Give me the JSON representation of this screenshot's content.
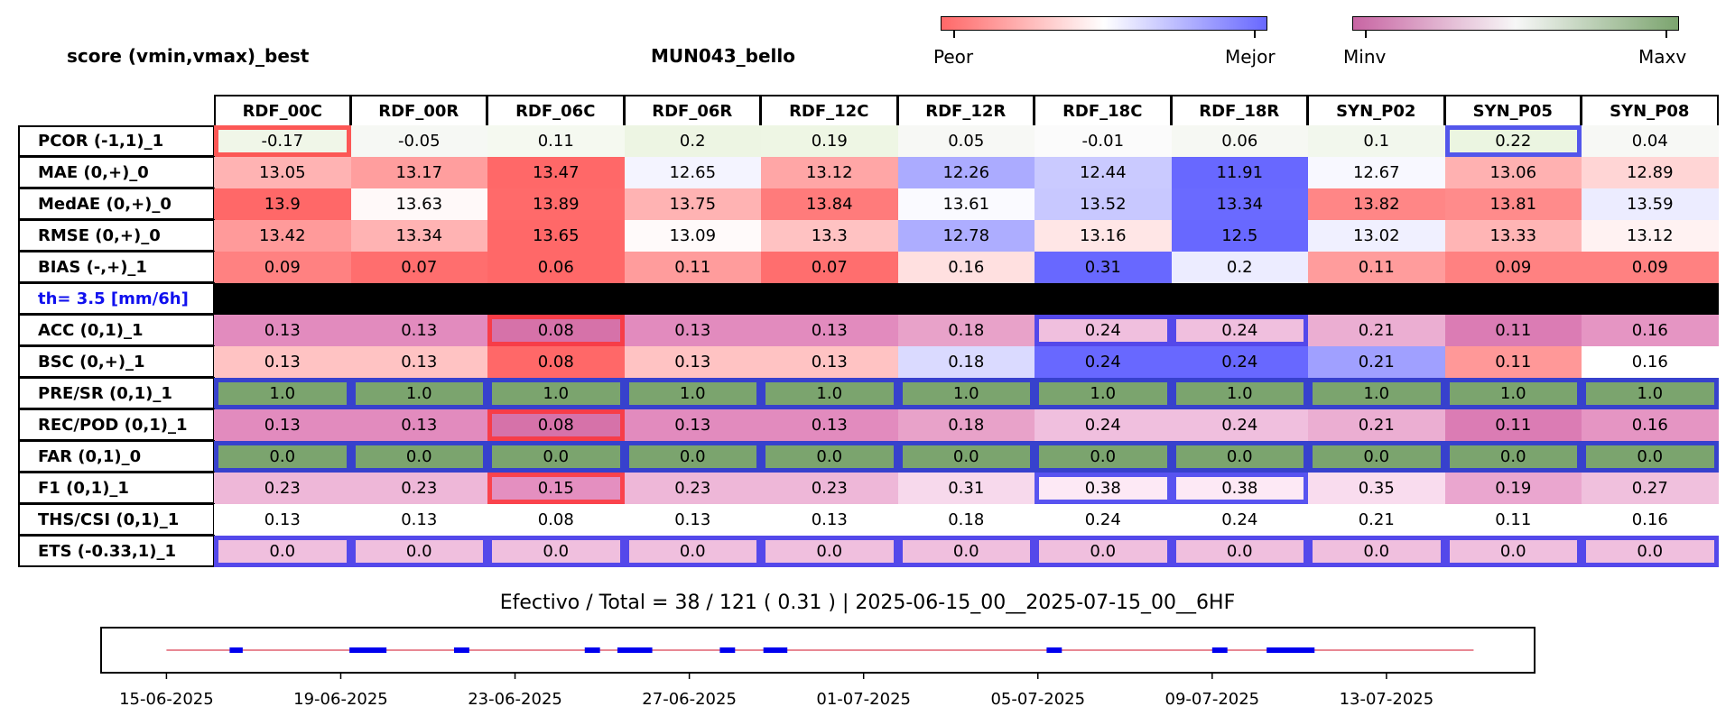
{
  "header": {
    "left_title": "score (vmin,vmax)_best",
    "center_title": "MUN043_bello"
  },
  "colorbars": {
    "score": {
      "min_label": "Peor",
      "max_label": "Mejor",
      "min_color": "#ff6868",
      "mid_color": "#ffffff",
      "max_color": "#6868ff"
    },
    "value": {
      "min_label": "Minv",
      "max_label": "Maxv",
      "min_color": "#c865a3",
      "mid_color": "#f7f7f7",
      "max_color": "#7ba46e"
    }
  },
  "chart_data": {
    "type": "heatmap",
    "columns": [
      "RDF_00C",
      "RDF_00R",
      "RDF_06C",
      "RDF_06R",
      "RDF_12C",
      "RDF_12R",
      "RDF_18C",
      "RDF_18R",
      "SYN_P02",
      "SYN_P05",
      "SYN_P08"
    ],
    "rows": [
      {
        "label": "PCOR (-1,1)_1",
        "values": [
          "-0.17",
          "-0.05",
          "0.11",
          "0.2",
          "0.19",
          "0.05",
          "-0.01",
          "0.06",
          "0.1",
          "0.22",
          "0.04"
        ],
        "colors": [
          "#f0f6e8",
          "#f6f8f4",
          "#f5f9f0",
          "#edf5e3",
          "#eef6e4",
          "#f7f8f5",
          "#fbfbfb",
          "#f6f8f3",
          "#f2f7ed",
          "#ebf5e1",
          "#f7f8f5"
        ],
        "worst": [
          0
        ],
        "best": [
          9
        ]
      },
      {
        "label": "MAE (0,+)_0",
        "values": [
          "13.05",
          "13.17",
          "13.47",
          "12.65",
          "13.12",
          "12.26",
          "12.44",
          "11.91",
          "12.67",
          "13.06",
          "12.89"
        ],
        "colors": [
          "#ffb3b3",
          "#ff9e9e",
          "#ff6868",
          "#f4f4ff",
          "#ffa6a6",
          "#ababff",
          "#cacaff",
          "#6868ff",
          "#f8f8ff",
          "#ffb1b1",
          "#ffd5d5"
        ],
        "worst": [],
        "best": []
      },
      {
        "label": "MedAE (0,+)_0",
        "values": [
          "13.9",
          "13.63",
          "13.89",
          "13.75",
          "13.84",
          "13.61",
          "13.52",
          "13.34",
          "13.82",
          "13.81",
          "13.59"
        ],
        "colors": [
          "#ff6868",
          "#fff9f9",
          "#ff6a6a",
          "#ffb3b3",
          "#ff7b7b",
          "#fafaff",
          "#c8c8ff",
          "#6a6aff",
          "#ff8686",
          "#ff8b8b",
          "#ececff"
        ],
        "worst": [],
        "best": []
      },
      {
        "label": "RMSE (0,+)_0",
        "values": [
          "13.42",
          "13.34",
          "13.65",
          "13.09",
          "13.3",
          "12.78",
          "13.16",
          "12.5",
          "13.02",
          "13.33",
          "13.12"
        ],
        "colors": [
          "#ff9a9a",
          "#ffb3b3",
          "#ff6868",
          "#fffafa",
          "#ffc2c2",
          "#adadff",
          "#ffe6e6",
          "#6868ff",
          "#f0f0ff",
          "#ffb5b5",
          "#fff2f2"
        ],
        "worst": [],
        "best": []
      },
      {
        "label": "BIAS (-,+)_1",
        "values": [
          "0.09",
          "0.07",
          "0.06",
          "0.11",
          "0.07",
          "0.16",
          "0.31",
          "0.2",
          "0.11",
          "0.09",
          "0.09"
        ],
        "colors": [
          "#ff8181",
          "#ff6e6e",
          "#ff6868",
          "#ff9c9c",
          "#ff6e6e",
          "#ffe0e0",
          "#6868ff",
          "#ececff",
          "#ff9c9c",
          "#ff8181",
          "#ff8181"
        ],
        "worst": [],
        "best": []
      },
      {
        "separator": true,
        "label": "th= 3.5 [mm/6h]"
      },
      {
        "label": "ACC (0,1)_1",
        "values": [
          "0.13",
          "0.13",
          "0.08",
          "0.13",
          "0.13",
          "0.18",
          "0.24",
          "0.24",
          "0.21",
          "0.11",
          "0.16"
        ],
        "colors": [
          "#e28bbe",
          "#e28bbe",
          "#d672a9",
          "#e28bbe",
          "#e28bbe",
          "#e8a2c9",
          "#f0bfde",
          "#f0bfde",
          "#ebaed2",
          "#db7cb4",
          "#e595c3"
        ],
        "worst": [
          2
        ],
        "best": [
          6,
          7
        ]
      },
      {
        "label": "BSC (0,+)_1",
        "values": [
          "0.13",
          "0.13",
          "0.08",
          "0.13",
          "0.13",
          "0.18",
          "0.24",
          "0.24",
          "0.21",
          "0.11",
          "0.16"
        ],
        "colors": [
          "#ffc3c3",
          "#ffc3c3",
          "#ff6868",
          "#ffc3c3",
          "#ffc3c3",
          "#dadaff",
          "#6868ff",
          "#6868ff",
          "#a0a0ff",
          "#ff9898",
          "#ffffff"
        ],
        "worst": [],
        "best": []
      },
      {
        "label": "PRE/SR (0,1)_1",
        "values": [
          "1.0",
          "1.0",
          "1.0",
          "1.0",
          "1.0",
          "1.0",
          "1.0",
          "1.0",
          "1.0",
          "1.0",
          "1.0"
        ],
        "colors": [
          "#7ba46e",
          "#7ba46e",
          "#7ba46e",
          "#7ba46e",
          "#7ba46e",
          "#7ba46e",
          "#7ba46e",
          "#7ba46e",
          "#7ba46e",
          "#7ba46e",
          "#7ba46e"
        ],
        "worst": [],
        "best": [
          0,
          1,
          2,
          3,
          4,
          5,
          6,
          7,
          8,
          9,
          10
        ]
      },
      {
        "label": "REC/POD (0,1)_1",
        "values": [
          "0.13",
          "0.13",
          "0.08",
          "0.13",
          "0.13",
          "0.18",
          "0.24",
          "0.24",
          "0.21",
          "0.11",
          "0.16"
        ],
        "colors": [
          "#e28bbe",
          "#e28bbe",
          "#d672a9",
          "#e28bbe",
          "#e28bbe",
          "#e8a2c9",
          "#f0bfde",
          "#f0bfde",
          "#ebaed2",
          "#db7cb4",
          "#e595c3"
        ],
        "worst": [
          2
        ],
        "best": []
      },
      {
        "label": "FAR (0,1)_0",
        "values": [
          "0.0",
          "0.0",
          "0.0",
          "0.0",
          "0.0",
          "0.0",
          "0.0",
          "0.0",
          "0.0",
          "0.0",
          "0.0"
        ],
        "colors": [
          "#7ba46e",
          "#7ba46e",
          "#7ba46e",
          "#7ba46e",
          "#7ba46e",
          "#7ba46e",
          "#7ba46e",
          "#7ba46e",
          "#7ba46e",
          "#7ba46e",
          "#7ba46e"
        ],
        "worst": [],
        "best": [
          0,
          1,
          2,
          3,
          4,
          5,
          6,
          7,
          8,
          9,
          10
        ]
      },
      {
        "label": "F1 (0,1)_1",
        "values": [
          "0.23",
          "0.23",
          "0.15",
          "0.23",
          "0.23",
          "0.31",
          "0.38",
          "0.38",
          "0.35",
          "0.19",
          "0.27"
        ],
        "colors": [
          "#eeb7d8",
          "#eeb7d8",
          "#e48fc0",
          "#eeb7d8",
          "#eeb7d8",
          "#f7d9ec",
          "#fde9f5",
          "#fde9f5",
          "#f9dcee",
          "#eaa6cf",
          "#f0c0dd"
        ],
        "worst": [
          2
        ],
        "best": [
          6,
          7
        ]
      },
      {
        "label": "THS/CSI (0,1)_1",
        "values": [
          "0.13",
          "0.13",
          "0.08",
          "0.13",
          "0.13",
          "0.18",
          "0.24",
          "0.24",
          "0.21",
          "0.11",
          "0.16"
        ],
        "colors": [
          "#ffffff",
          "#ffffff",
          "#ffffff",
          "#ffffff",
          "#ffffff",
          "#ffffff",
          "#ffffff",
          "#ffffff",
          "#ffffff",
          "#ffffff",
          "#ffffff"
        ],
        "worst": [],
        "best": []
      },
      {
        "label": "ETS (-0.33,1)_1",
        "values": [
          "0.0",
          "0.0",
          "0.0",
          "0.0",
          "0.0",
          "0.0",
          "0.0",
          "0.0",
          "0.0",
          "0.0",
          "0.0"
        ],
        "colors": [
          "#f0bfde",
          "#f0bfde",
          "#f0bfde",
          "#f0bfde",
          "#f0bfde",
          "#f0bfde",
          "#f0bfde",
          "#f0bfde",
          "#f0bfde",
          "#f0bfde",
          "#f0bfde"
        ],
        "worst": [],
        "best": [
          0,
          1,
          2,
          3,
          4,
          5,
          6,
          7,
          8,
          9,
          10
        ]
      }
    ],
    "highlight_colors": {
      "best": "#2020ee",
      "worst": "#ff3030"
    },
    "separator_label_color": "#1010ee"
  },
  "summary": "Efectivo / Total  =  38 / 121 ( 0.31 ) | 2025-06-15_00__2025-07-15_00__6HF",
  "timeline": {
    "x_tick_labels": [
      "15-06-2025",
      "19-06-2025",
      "23-06-2025",
      "27-06-2025",
      "01-07-2025",
      "05-07-2025",
      "09-07-2025",
      "13-07-2025"
    ],
    "x_ticks_day": [
      0,
      4,
      8,
      12,
      16,
      20,
      24,
      28
    ],
    "x_range_days": [
      -1.5,
      31.4
    ],
    "line_range_days": [
      0,
      30
    ],
    "line_color": "#e06070",
    "segment_color": "#0000ee",
    "segments_days": [
      [
        1.45,
        1.75
      ],
      [
        4.2,
        5.05
      ],
      [
        6.6,
        6.95
      ],
      [
        9.6,
        9.95
      ],
      [
        10.35,
        11.15
      ],
      [
        12.7,
        13.05
      ],
      [
        13.7,
        14.25
      ],
      [
        20.2,
        20.55
      ],
      [
        24,
        24.35
      ],
      [
        25.25,
        26.35
      ]
    ]
  }
}
